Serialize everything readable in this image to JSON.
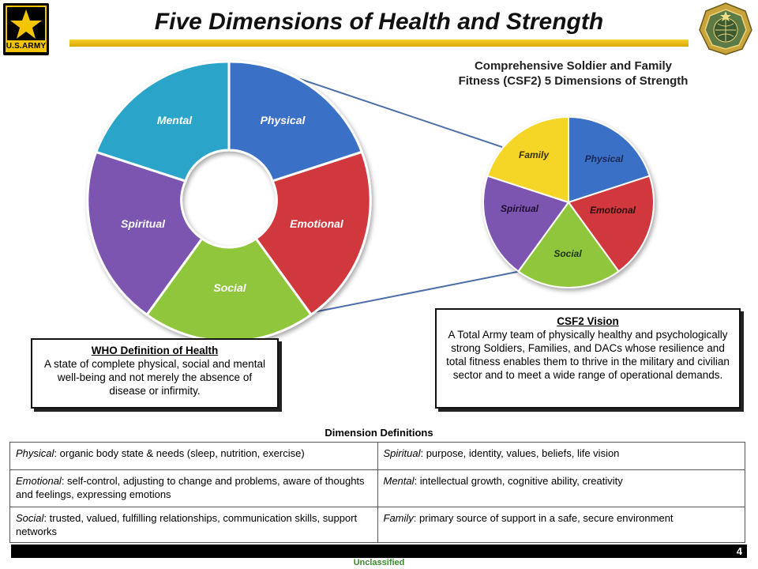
{
  "header": {
    "title": "Five Dimensions of Health and Strength",
    "left_logo": {
      "text": "U.S.ARMY",
      "icon": "army-star-icon",
      "colors": {
        "gold": "#f2c500",
        "black": "#000000"
      }
    },
    "right_logo": {
      "icon": "army-crest-emblem-icon",
      "colors": {
        "gold": "#c9a43a",
        "green": "#4d6b3a"
      }
    },
    "rule_color": "#e6b800"
  },
  "who_ring": {
    "segments": [
      {
        "label": "Physical",
        "color": "#3a6fc7"
      },
      {
        "label": "Emotional",
        "color": "#d0373d"
      },
      {
        "label": "Social",
        "color": "#8fc63a"
      },
      {
        "label": "Spiritual",
        "color": "#7b55b0"
      },
      {
        "label": "Mental",
        "color": "#2ba5c9"
      }
    ]
  },
  "csf2_pie": {
    "heading": "Comprehensive Soldier and Family Fitness (CSF2) 5 Dimensions of Strength",
    "segments": [
      {
        "label": "Physical",
        "color": "#3a6fc7"
      },
      {
        "label": "Emotional",
        "color": "#d0373d"
      },
      {
        "label": "Social",
        "color": "#8fc63a"
      },
      {
        "label": "Spiritual",
        "color": "#7b55b0"
      },
      {
        "label": "Family",
        "color": "#f5d526"
      }
    ]
  },
  "who_definition": {
    "title": "WHO Definition of Health",
    "text": "A state of complete physical, social and mental well-being and not merely the absence of disease or infirmity."
  },
  "csf2_vision": {
    "title": "CSF2 Vision",
    "text": "A Total Army team of physically healthy and psychologically strong Soldiers, Families, and DACs whose resilience and total fitness enables them to thrive in the military and civilian sector and to meet a wide range of operational demands."
  },
  "definitions": {
    "heading": "Dimension Definitions",
    "rows": [
      [
        {
          "term": "Physical",
          "text": ": organic body state & needs (sleep, nutrition, exercise)"
        },
        {
          "term": "Spiritual",
          "text": ": purpose, identity, values, beliefs, life vision"
        }
      ],
      [
        {
          "term": "Emotional",
          "text": ": self-control, adjusting to change and problems, aware of thoughts and feelings, expressing emotions"
        },
        {
          "term": "Mental",
          "text": ": intellectual growth, cognitive ability, creativity"
        }
      ],
      [
        {
          "term": "Social",
          "text": ": trusted, valued, fulfilling relationships, communication skills, support networks"
        },
        {
          "term": "Family",
          "text": ": primary source of support in a safe, secure environment"
        }
      ]
    ]
  },
  "footer": {
    "page_number": "4",
    "classification": "Unclassified",
    "classification_color": "#3c8a2e"
  }
}
